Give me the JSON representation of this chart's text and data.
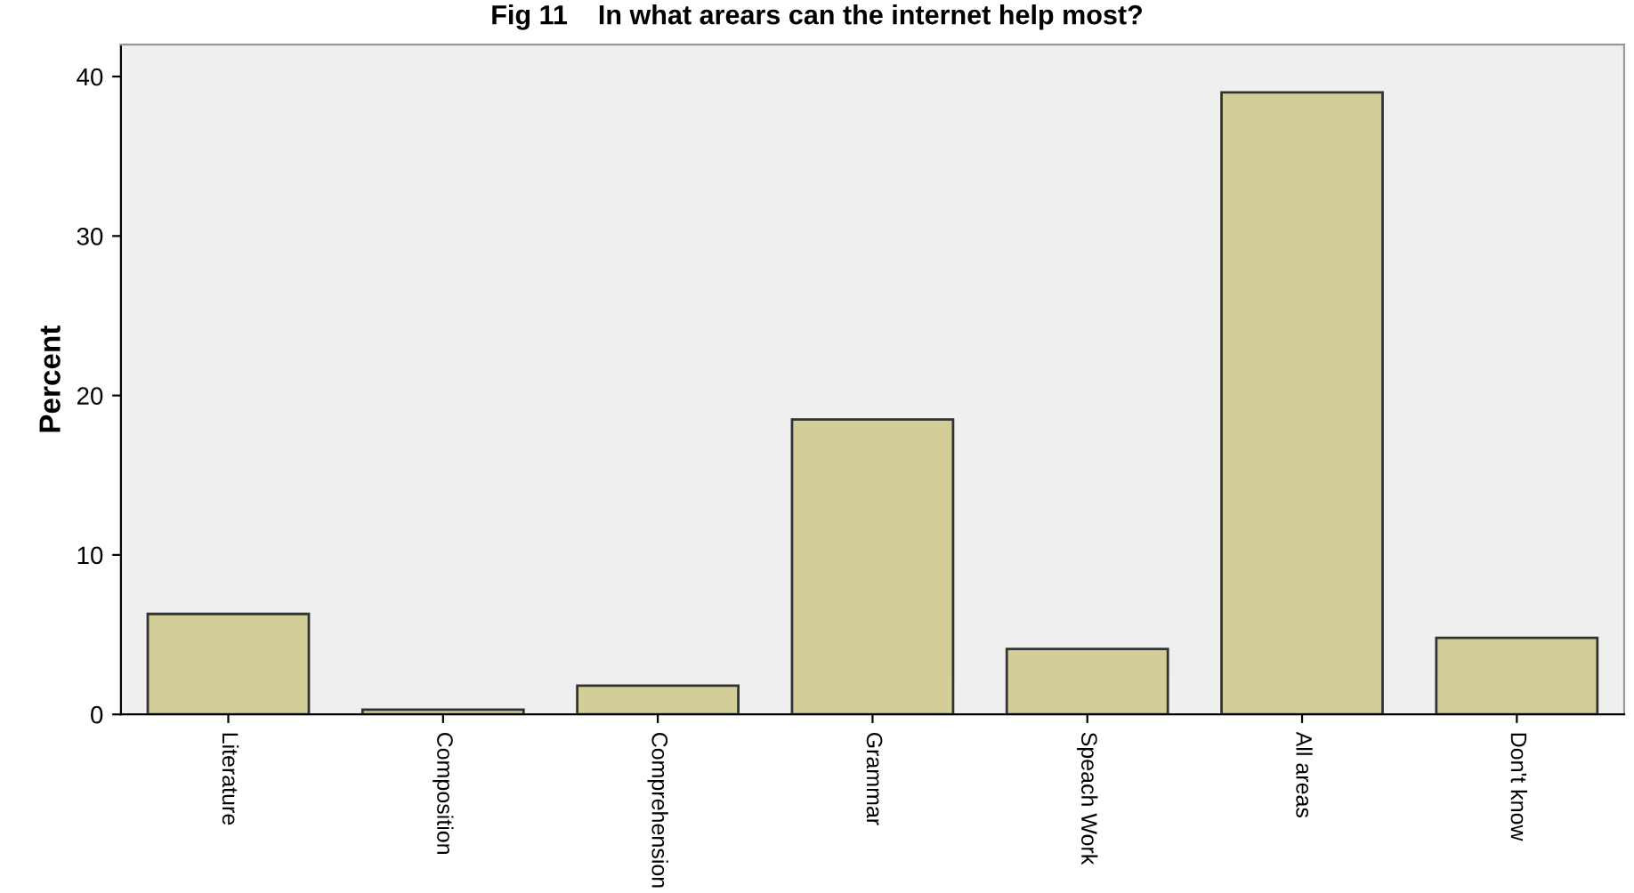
{
  "chart_data": {
    "type": "bar",
    "title": "Fig 11    In what arears can the internet help most?",
    "ylabel": "Percent",
    "categories": [
      "Literature",
      "Composition",
      "Comprehension",
      "Grammar",
      "Speach Work",
      "All areas",
      "Don't know"
    ],
    "values": [
      6.3,
      0.3,
      1.8,
      18.5,
      4.1,
      39.0,
      4.8
    ],
    "color": "#d3ce97",
    "ylim": [
      0,
      42
    ],
    "yticks": [
      0,
      10,
      20,
      30,
      40
    ],
    "grid": false
  }
}
